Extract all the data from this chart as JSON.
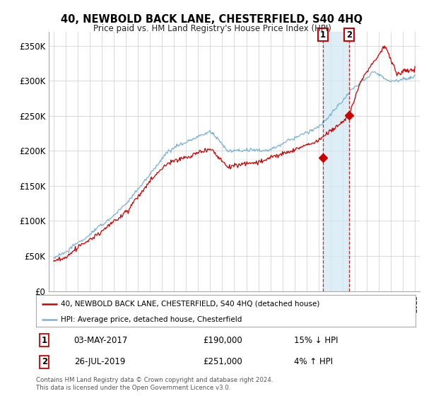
{
  "title": "40, NEWBOLD BACK LANE, CHESTERFIELD, S40 4HQ",
  "subtitle": "Price paid vs. HM Land Registry's House Price Index (HPI)",
  "ylabel_ticks": [
    "£0",
    "£50K",
    "£100K",
    "£150K",
    "£200K",
    "£250K",
    "£300K",
    "£350K"
  ],
  "ytick_vals": [
    0,
    50000,
    100000,
    150000,
    200000,
    250000,
    300000,
    350000
  ],
  "ylim": [
    0,
    370000
  ],
  "xlim_start": 1994.6,
  "xlim_end": 2025.4,
  "legend_line1": "40, NEWBOLD BACK LANE, CHESTERFIELD, S40 4HQ (detached house)",
  "legend_line2": "HPI: Average price, detached house, Chesterfield",
  "transaction1_date": "03-MAY-2017",
  "transaction1_price": "£190,000",
  "transaction1_hpi": "15% ↓ HPI",
  "transaction2_date": "26-JUL-2019",
  "transaction2_price": "£251,000",
  "transaction2_hpi": "4% ↑ HPI",
  "footer": "Contains HM Land Registry data © Crown copyright and database right 2024.\nThis data is licensed under the Open Government Licence v3.0.",
  "hpi_color": "#7ab3d4",
  "price_color": "#cc0000",
  "marker1_x": 2017.35,
  "marker1_y": 190000,
  "marker2_x": 2019.56,
  "marker2_y": 251000,
  "shade_color": "#d0e8f5",
  "bg_color": "#ffffff",
  "grid_color": "#cccccc"
}
